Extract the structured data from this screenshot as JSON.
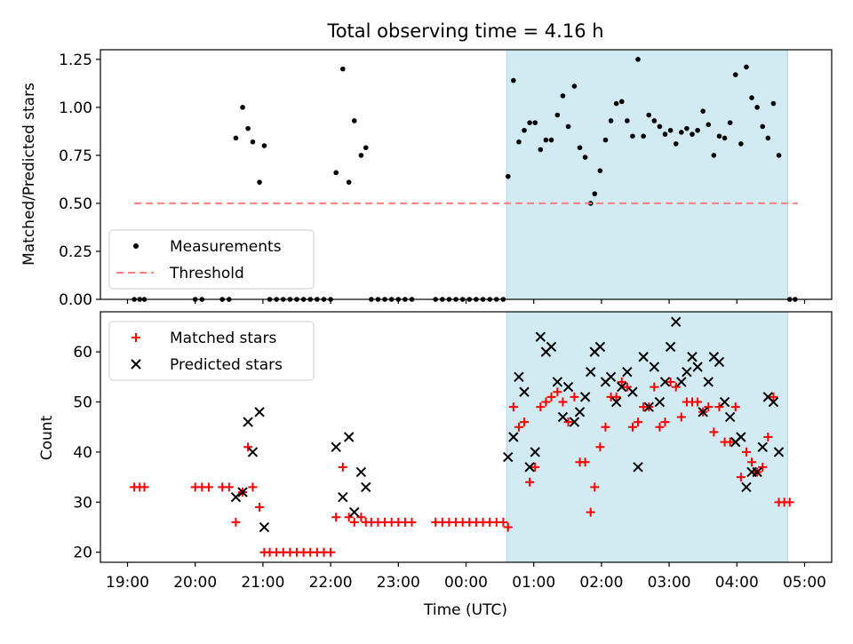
{
  "chart_data": [
    {
      "type": "scatter",
      "title": "Total observing time = 4.16 h",
      "xlabel": "",
      "ylabel": "Matched/Predicted stars",
      "ylim": [
        0,
        1.3
      ],
      "yticks": [
        "0.00",
        "0.25",
        "0.50",
        "0.75",
        "1.00",
        "1.25"
      ],
      "xticks": [
        "19:00",
        "20:00",
        "21:00",
        "22:00",
        "23:00",
        "00:00",
        "01:00",
        "02:00",
        "03:00",
        "04:00",
        "05:00"
      ],
      "x_axis": "hours after 19:00 UTC (time)",
      "shaded_interval": [
        "00:36",
        "04:45"
      ],
      "shade_color": "#add8e6",
      "legend_position": "lower-left",
      "series": [
        {
          "name": "Measurements",
          "color": "#000000",
          "marker": "dot",
          "points": [
            [
              0.1,
              0
            ],
            [
              0.18,
              0
            ],
            [
              0.25,
              0
            ],
            [
              1.0,
              0
            ],
            [
              1.1,
              0
            ],
            [
              1.4,
              0
            ],
            [
              1.5,
              0
            ],
            [
              1.6,
              0.84
            ],
            [
              1.7,
              1.0
            ],
            [
              1.78,
              0.89
            ],
            [
              1.85,
              0.82
            ],
            [
              1.95,
              0.61
            ],
            [
              2.02,
              0.8
            ],
            [
              2.1,
              0
            ],
            [
              2.2,
              0
            ],
            [
              2.3,
              0
            ],
            [
              2.4,
              0
            ],
            [
              2.5,
              0
            ],
            [
              2.6,
              0
            ],
            [
              2.7,
              0
            ],
            [
              2.8,
              0
            ],
            [
              2.9,
              0
            ],
            [
              3.0,
              0
            ],
            [
              3.08,
              0.66
            ],
            [
              3.18,
              1.2
            ],
            [
              3.27,
              0.61
            ],
            [
              3.35,
              0.93
            ],
            [
              3.45,
              0.75
            ],
            [
              3.52,
              0.79
            ],
            [
              3.6,
              0
            ],
            [
              3.7,
              0
            ],
            [
              3.8,
              0
            ],
            [
              3.9,
              0
            ],
            [
              4.0,
              0
            ],
            [
              4.1,
              0
            ],
            [
              4.2,
              0
            ],
            [
              4.55,
              0
            ],
            [
              4.65,
              0
            ],
            [
              4.75,
              0
            ],
            [
              4.85,
              0
            ],
            [
              4.95,
              0
            ],
            [
              5.05,
              0
            ],
            [
              5.15,
              0
            ],
            [
              5.25,
              0
            ],
            [
              5.35,
              0
            ],
            [
              5.45,
              0
            ],
            [
              5.55,
              0
            ],
            [
              5.62,
              0.64
            ],
            [
              5.7,
              1.14
            ],
            [
              5.78,
              0.82
            ],
            [
              5.86,
              0.88
            ],
            [
              5.94,
              0.92
            ],
            [
              6.02,
              0.92
            ],
            [
              6.1,
              0.78
            ],
            [
              6.18,
              0.83
            ],
            [
              6.26,
              0.83
            ],
            [
              6.35,
              0.96
            ],
            [
              6.43,
              1.06
            ],
            [
              6.51,
              0.9
            ],
            [
              6.6,
              1.11
            ],
            [
              6.68,
              0.79
            ],
            [
              6.76,
              0.74
            ],
            [
              6.84,
              0.5
            ],
            [
              6.9,
              0.55
            ],
            [
              6.98,
              0.67
            ],
            [
              7.06,
              0.83
            ],
            [
              7.14,
              0.93
            ],
            [
              7.22,
              1.02
            ],
            [
              7.3,
              1.03
            ],
            [
              7.38,
              0.93
            ],
            [
              7.46,
              0.85
            ],
            [
              7.54,
              1.25
            ],
            [
              7.62,
              0.85
            ],
            [
              7.7,
              0.96
            ],
            [
              7.78,
              0.93
            ],
            [
              7.86,
              0.9
            ],
            [
              7.94,
              0.86
            ],
            [
              8.02,
              0.88
            ],
            [
              8.1,
              0.81
            ],
            [
              8.18,
              0.87
            ],
            [
              8.26,
              0.89
            ],
            [
              8.34,
              0.86
            ],
            [
              8.42,
              0.88
            ],
            [
              8.5,
              0.98
            ],
            [
              8.58,
              0.91
            ],
            [
              8.66,
              0.75
            ],
            [
              8.74,
              0.85
            ],
            [
              8.82,
              0.84
            ],
            [
              8.9,
              0.92
            ],
            [
              8.98,
              1.17
            ],
            [
              9.06,
              0.81
            ],
            [
              9.14,
              1.21
            ],
            [
              9.22,
              1.05
            ],
            [
              9.3,
              1.0
            ],
            [
              9.38,
              0.9
            ],
            [
              9.46,
              0.84
            ],
            [
              9.54,
              1.02
            ],
            [
              9.62,
              0.75
            ],
            [
              9.78,
              0
            ],
            [
              9.86,
              0
            ]
          ]
        },
        {
          "name": "Threshold",
          "color": "#ff7f7f",
          "style": "dashed",
          "points": [
            [
              0.1,
              0.5
            ],
            [
              9.9,
              0.5
            ]
          ]
        }
      ]
    },
    {
      "type": "scatter",
      "title": "",
      "xlabel": "Time (UTC)",
      "ylabel": "Count",
      "ylim": [
        18,
        68
      ],
      "yticks": [
        "20",
        "30",
        "40",
        "50",
        "60"
      ],
      "xticks": [
        "19:00",
        "20:00",
        "21:00",
        "22:00",
        "23:00",
        "00:00",
        "01:00",
        "02:00",
        "03:00",
        "04:00",
        "05:00"
      ],
      "x_axis": "hours after 19:00 UTC (time)",
      "shaded_interval": [
        "00:36",
        "04:45"
      ],
      "shade_color": "#add8e6",
      "legend_position": "top-left",
      "series": [
        {
          "name": "Matched stars",
          "color": "#ff0000",
          "marker": "plus",
          "points": [
            [
              0.1,
              33
            ],
            [
              0.18,
              33
            ],
            [
              0.25,
              33
            ],
            [
              1.0,
              33
            ],
            [
              1.1,
              33
            ],
            [
              1.2,
              33
            ],
            [
              1.4,
              33
            ],
            [
              1.5,
              33
            ],
            [
              1.6,
              26
            ],
            [
              1.7,
              32
            ],
            [
              1.78,
              41
            ],
            [
              1.85,
              33
            ],
            [
              1.95,
              29
            ],
            [
              2.02,
              20
            ],
            [
              2.1,
              20
            ],
            [
              2.2,
              20
            ],
            [
              2.3,
              20
            ],
            [
              2.4,
              20
            ],
            [
              2.5,
              20
            ],
            [
              2.6,
              20
            ],
            [
              2.7,
              20
            ],
            [
              2.8,
              20
            ],
            [
              2.9,
              20
            ],
            [
              3.0,
              20
            ],
            [
              3.08,
              27
            ],
            [
              3.18,
              37
            ],
            [
              3.27,
              27
            ],
            [
              3.35,
              26
            ],
            [
              3.45,
              27
            ],
            [
              3.52,
              26
            ],
            [
              3.6,
              26
            ],
            [
              3.7,
              26
            ],
            [
              3.8,
              26
            ],
            [
              3.9,
              26
            ],
            [
              4.0,
              26
            ],
            [
              4.1,
              26
            ],
            [
              4.2,
              26
            ],
            [
              4.55,
              26
            ],
            [
              4.65,
              26
            ],
            [
              4.75,
              26
            ],
            [
              4.85,
              26
            ],
            [
              4.95,
              26
            ],
            [
              5.05,
              26
            ],
            [
              5.15,
              26
            ],
            [
              5.25,
              26
            ],
            [
              5.35,
              26
            ],
            [
              5.45,
              26
            ],
            [
              5.55,
              26
            ],
            [
              5.62,
              25
            ],
            [
              5.7,
              49
            ],
            [
              5.78,
              45
            ],
            [
              5.86,
              46
            ],
            [
              5.94,
              34
            ],
            [
              6.02,
              37
            ],
            [
              6.1,
              49
            ],
            [
              6.18,
              50
            ],
            [
              6.26,
              51
            ],
            [
              6.35,
              52
            ],
            [
              6.43,
              50
            ],
            [
              6.51,
              46
            ],
            [
              6.6,
              51
            ],
            [
              6.68,
              38
            ],
            [
              6.76,
              38
            ],
            [
              6.84,
              28
            ],
            [
              6.9,
              33
            ],
            [
              6.98,
              41
            ],
            [
              7.06,
              45
            ],
            [
              7.14,
              51
            ],
            [
              7.22,
              51
            ],
            [
              7.3,
              54
            ],
            [
              7.38,
              53
            ],
            [
              7.46,
              45
            ],
            [
              7.54,
              46
            ],
            [
              7.62,
              49
            ],
            [
              7.7,
              49
            ],
            [
              7.78,
              53
            ],
            [
              7.86,
              45
            ],
            [
              7.94,
              46
            ],
            [
              8.02,
              54
            ],
            [
              8.1,
              53
            ],
            [
              8.18,
              47
            ],
            [
              8.26,
              50
            ],
            [
              8.34,
              50
            ],
            [
              8.42,
              50
            ],
            [
              8.5,
              48
            ],
            [
              8.58,
              49
            ],
            [
              8.66,
              44
            ],
            [
              8.74,
              49
            ],
            [
              8.82,
              42
            ],
            [
              8.9,
              42
            ],
            [
              8.98,
              49
            ],
            [
              9.06,
              35
            ],
            [
              9.14,
              40
            ],
            [
              9.22,
              38
            ],
            [
              9.3,
              36
            ],
            [
              9.38,
              37
            ],
            [
              9.46,
              43
            ],
            [
              9.54,
              51
            ],
            [
              9.62,
              30
            ],
            [
              9.7,
              30
            ],
            [
              9.78,
              30
            ]
          ]
        },
        {
          "name": "Predicted stars",
          "color": "#000000",
          "marker": "x",
          "points": [
            [
              1.6,
              31
            ],
            [
              1.7,
              32
            ],
            [
              1.78,
              46
            ],
            [
              1.85,
              40
            ],
            [
              1.95,
              48
            ],
            [
              2.02,
              25
            ],
            [
              3.08,
              41
            ],
            [
              3.18,
              31
            ],
            [
              3.27,
              43
            ],
            [
              3.35,
              28
            ],
            [
              3.45,
              36
            ],
            [
              3.52,
              33
            ],
            [
              5.62,
              39
            ],
            [
              5.7,
              43
            ],
            [
              5.78,
              55
            ],
            [
              5.86,
              52
            ],
            [
              5.94,
              37
            ],
            [
              6.02,
              40
            ],
            [
              6.1,
              63
            ],
            [
              6.18,
              60
            ],
            [
              6.26,
              61
            ],
            [
              6.35,
              54
            ],
            [
              6.43,
              47
            ],
            [
              6.51,
              53
            ],
            [
              6.6,
              46
            ],
            [
              6.68,
              48
            ],
            [
              6.76,
              51
            ],
            [
              6.84,
              56
            ],
            [
              6.9,
              60
            ],
            [
              6.98,
              61
            ],
            [
              7.06,
              54
            ],
            [
              7.14,
              55
            ],
            [
              7.22,
              50
            ],
            [
              7.3,
              53
            ],
            [
              7.38,
              56
            ],
            [
              7.46,
              52
            ],
            [
              7.54,
              37
            ],
            [
              7.62,
              59
            ],
            [
              7.7,
              49
            ],
            [
              7.78,
              57
            ],
            [
              7.86,
              50
            ],
            [
              7.94,
              54
            ],
            [
              8.02,
              61
            ],
            [
              8.1,
              66
            ],
            [
              8.18,
              54
            ],
            [
              8.26,
              56
            ],
            [
              8.34,
              59
            ],
            [
              8.42,
              57
            ],
            [
              8.5,
              48
            ],
            [
              8.58,
              54
            ],
            [
              8.66,
              59
            ],
            [
              8.74,
              58
            ],
            [
              8.82,
              50
            ],
            [
              8.9,
              47
            ],
            [
              8.98,
              42
            ],
            [
              9.06,
              43
            ],
            [
              9.14,
              33
            ],
            [
              9.22,
              36
            ],
            [
              9.3,
              36
            ],
            [
              9.38,
              41
            ],
            [
              9.46,
              51
            ],
            [
              9.54,
              50
            ],
            [
              9.62,
              40
            ]
          ]
        }
      ]
    }
  ]
}
